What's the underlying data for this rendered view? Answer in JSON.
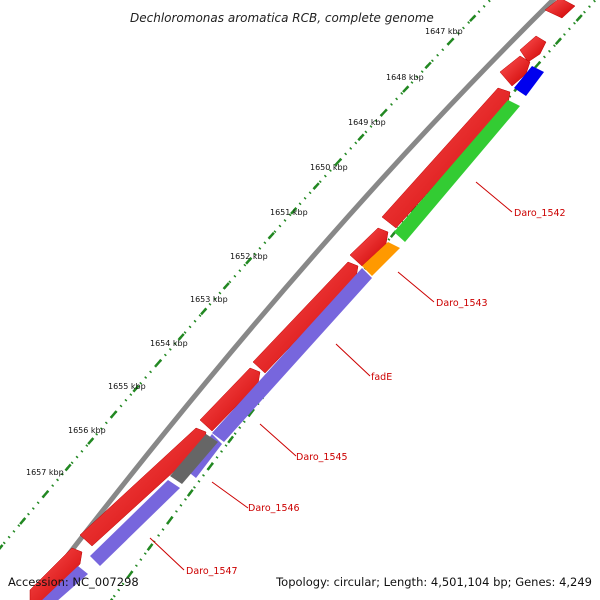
{
  "title": "Dechloromonas aromatica RCB, complete genome",
  "footer": {
    "accession": "Accession: NC_007298",
    "summary": "Topology: circular; Length: 4,501,104 bp; Genes: 4,249"
  },
  "ticks": [
    "1647 kbp",
    "1648 kbp",
    "1649 kbp",
    "1650 kbp",
    "1651 kbp",
    "1652 kbp",
    "1653 kbp",
    "1654 kbp",
    "1655 kbp",
    "1656 kbp",
    "1657 kbp"
  ],
  "genes": [
    {
      "label": "Daro_1542",
      "color": "#33cc33"
    },
    {
      "label": "Daro_1543",
      "color": "#ff9900"
    },
    {
      "label": "fadE",
      "color": "#7766dd"
    },
    {
      "label": "Daro_1545",
      "color": "#7766dd"
    },
    {
      "label": "Daro_1546",
      "color": "#666666"
    },
    {
      "label": "Daro_1547",
      "color": "#7766dd"
    }
  ],
  "colors": {
    "forward_cds": "#ee0000",
    "backbone": "#888888",
    "tick": "#228822",
    "blue_cds": "#0000ee",
    "label": "#cc0000"
  }
}
